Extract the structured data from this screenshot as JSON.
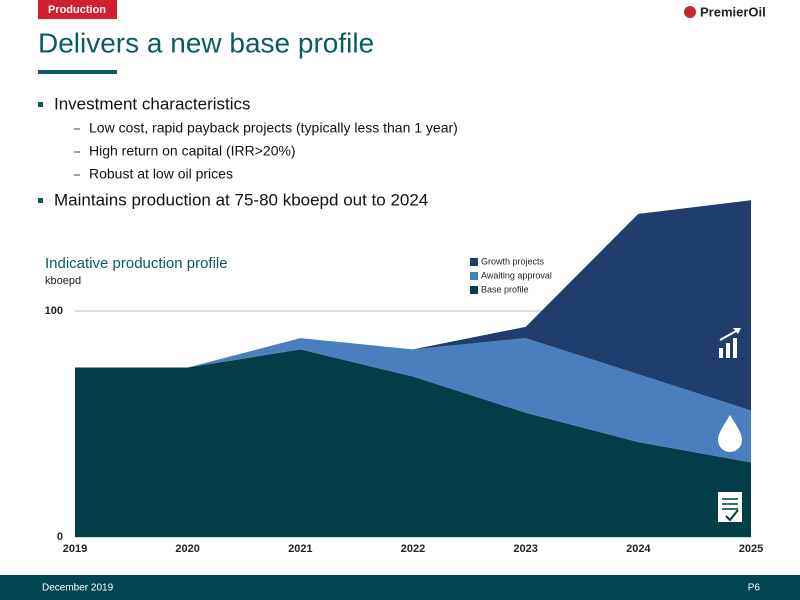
{
  "section": "Production",
  "logo": "PremierOil",
  "title": "Delivers a new base profile",
  "bullets": [
    {
      "text": "Investment characteristics",
      "sub": [
        "Low cost, rapid payback projects (typically less than 1 year)",
        "High return on capital (IRR>20%)",
        "Robust at low oil prices"
      ]
    },
    {
      "text": "Maintains production at 75-80 kboepd out to 2024",
      "sub": []
    }
  ],
  "footer": {
    "date": "December 2019",
    "page": "P6"
  },
  "chart_data": {
    "type": "stacked_area",
    "title": "Indicative production profile",
    "y_label": "kboepd",
    "x": [
      2019,
      2020,
      2021,
      2022,
      2023,
      2024,
      2025
    ],
    "xlim": [
      2019,
      2025
    ],
    "xticks": [
      2019,
      2020,
      2021,
      2022,
      2023,
      2024,
      2025
    ],
    "ylim": [
      0,
      150
    ],
    "yticks": [
      0,
      100
    ],
    "grid": true,
    "legend": "top",
    "series": [
      {
        "name": "Base profile",
        "color": "#013e48",
        "values": [
          75,
          75,
          83,
          71,
          55,
          42,
          33
        ]
      },
      {
        "name": "Awaiting approval",
        "color": "#4a7fbf",
        "values": [
          0,
          0,
          5,
          12,
          33,
          30,
          23
        ]
      },
      {
        "name": "Growth projects",
        "color": "#1f3e6e",
        "values": [
          0,
          0,
          0,
          0,
          5,
          71,
          93
        ]
      }
    ]
  }
}
